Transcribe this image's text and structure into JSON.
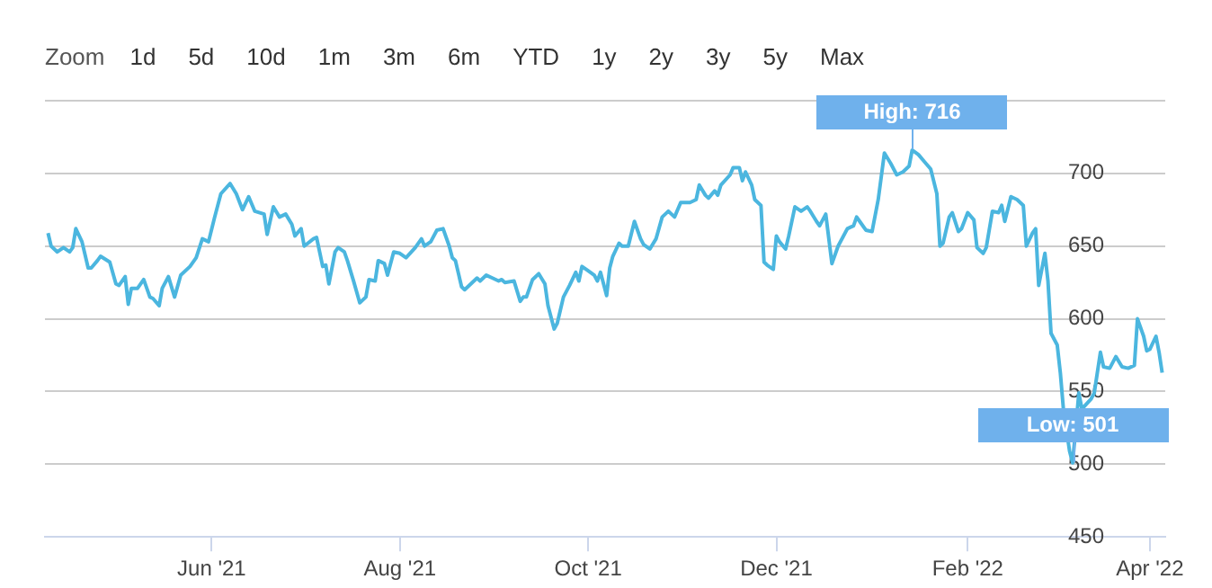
{
  "chart_data": {
    "type": "line",
    "x": [
      "2021-04-09",
      "2021-04-10",
      "2021-04-12",
      "2021-04-14",
      "2021-04-16",
      "2021-04-17",
      "2021-04-18",
      "2021-04-20",
      "2021-04-22",
      "2021-04-23",
      "2021-04-25",
      "2021-04-26",
      "2021-04-29",
      "2021-05-01",
      "2021-05-02",
      "2021-05-04",
      "2021-05-05",
      "2021-05-06",
      "2021-05-08",
      "2021-05-10",
      "2021-05-12",
      "2021-05-13",
      "2021-05-15",
      "2021-05-16",
      "2021-05-18",
      "2021-05-20",
      "2021-05-22",
      "2021-05-25",
      "2021-05-27",
      "2021-05-29",
      "2021-05-31",
      "2021-06-02",
      "2021-06-04",
      "2021-06-07",
      "2021-06-09",
      "2021-06-11",
      "2021-06-13",
      "2021-06-15",
      "2021-06-18",
      "2021-06-19",
      "2021-06-21",
      "2021-06-23",
      "2021-06-25",
      "2021-06-27",
      "2021-06-28",
      "2021-06-30",
      "2021-07-01",
      "2021-07-04",
      "2021-07-05",
      "2021-07-07",
      "2021-07-08",
      "2021-07-09",
      "2021-07-11",
      "2021-07-12",
      "2021-07-14",
      "2021-07-15",
      "2021-07-17",
      "2021-07-19",
      "2021-07-21",
      "2021-07-22",
      "2021-07-24",
      "2021-07-25",
      "2021-07-27",
      "2021-07-28",
      "2021-07-30",
      "2021-08-01",
      "2021-08-03",
      "2021-08-06",
      "2021-08-08",
      "2021-08-09",
      "2021-08-11",
      "2021-08-13",
      "2021-08-15",
      "2021-08-17",
      "2021-08-18",
      "2021-08-19",
      "2021-08-21",
      "2021-08-22",
      "2021-08-24",
      "2021-08-26",
      "2021-08-27",
      "2021-08-29",
      "2021-08-31",
      "2021-09-02",
      "2021-09-03",
      "2021-09-04",
      "2021-09-07",
      "2021-09-09",
      "2021-09-10",
      "2021-09-11",
      "2021-09-13",
      "2021-09-15",
      "2021-09-17",
      "2021-09-18",
      "2021-09-20",
      "2021-09-21",
      "2021-09-23",
      "2021-09-25",
      "2021-09-27",
      "2021-09-28",
      "2021-09-29",
      "2021-10-01",
      "2021-10-03",
      "2021-10-04",
      "2021-10-05",
      "2021-10-07",
      "2021-10-08",
      "2021-10-09",
      "2021-10-11",
      "2021-10-12",
      "2021-10-14",
      "2021-10-16",
      "2021-10-18",
      "2021-10-19",
      "2021-10-21",
      "2021-10-23",
      "2021-10-25",
      "2021-10-27",
      "2021-10-29",
      "2021-10-31",
      "2021-11-03",
      "2021-11-05",
      "2021-11-06",
      "2021-11-08",
      "2021-11-09",
      "2021-11-11",
      "2021-11-12",
      "2021-11-13",
      "2021-11-16",
      "2021-11-17",
      "2021-11-19",
      "2021-11-20",
      "2021-11-21",
      "2021-11-23",
      "2021-11-24",
      "2021-11-26",
      "2021-11-27",
      "2021-11-28",
      "2021-11-30",
      "2021-12-01",
      "2021-12-02",
      "2021-12-04",
      "2021-12-05",
      "2021-12-07",
      "2021-12-09",
      "2021-12-11",
      "2021-12-12",
      "2021-12-14",
      "2021-12-15",
      "2021-12-17",
      "2021-12-18",
      "2021-12-19",
      "2021-12-21",
      "2021-12-24",
      "2021-12-26",
      "2021-12-27",
      "2021-12-28",
      "2021-12-30",
      "2022-01-01",
      "2022-01-03",
      "2022-01-05",
      "2022-01-07",
      "2022-01-09",
      "2022-01-11",
      "2022-01-13",
      "2022-01-14",
      "2022-01-16",
      "2022-01-18",
      "2022-01-20",
      "2022-01-22",
      "2022-01-23",
      "2022-01-24",
      "2022-01-26",
      "2022-01-27",
      "2022-01-29",
      "2022-01-30",
      "2022-02-01",
      "2022-02-03",
      "2022-02-04",
      "2022-02-06",
      "2022-02-07",
      "2022-02-09",
      "2022-02-11",
      "2022-02-12",
      "2022-02-13",
      "2022-02-15",
      "2022-02-17",
      "2022-02-19",
      "2022-02-20",
      "2022-02-22",
      "2022-02-23",
      "2022-02-24",
      "2022-02-26",
      "2022-02-27",
      "2022-02-28",
      "2022-03-02",
      "2022-03-03",
      "2022-03-04",
      "2022-03-06",
      "2022-03-07",
      "2022-03-09",
      "2022-03-10",
      "2022-03-13",
      "2022-03-14",
      "2022-03-16",
      "2022-03-17",
      "2022-03-19",
      "2022-03-21",
      "2022-03-23",
      "2022-03-25",
      "2022-03-27",
      "2022-03-28",
      "2022-03-30",
      "2022-03-31",
      "2022-04-01",
      "2022-04-03",
      "2022-04-04",
      "2022-04-05"
    ],
    "series": [
      {
        "color": "#4bb6df",
        "values": [
          659,
          650,
          646,
          649,
          646,
          649,
          662,
          653,
          635,
          635,
          640,
          643,
          639,
          624,
          623,
          629,
          610,
          621,
          621,
          627,
          615,
          614,
          609,
          621,
          629,
          615,
          630,
          636,
          642,
          655,
          653,
          670,
          686,
          693,
          686,
          675,
          684,
          674,
          672,
          658,
          677,
          670,
          672,
          665,
          657,
          662,
          650,
          655,
          656,
          636,
          637,
          624,
          646,
          649,
          646,
          640,
          626,
          611,
          615,
          627,
          626,
          640,
          638,
          630,
          646,
          645,
          642,
          649,
          655,
          650,
          653,
          661,
          662,
          650,
          642,
          640,
          622,
          620,
          624,
          628,
          626,
          630,
          628,
          626,
          627,
          625,
          626,
          612,
          615,
          615,
          627,
          631,
          624,
          609,
          593,
          597,
          615,
          623,
          632,
          626,
          636,
          633,
          630,
          626,
          632,
          616,
          635,
          643,
          652,
          650,
          650,
          667,
          655,
          651,
          648,
          655,
          670,
          674,
          670,
          680,
          680,
          682,
          692,
          685,
          683,
          688,
          685,
          692,
          699,
          704,
          704,
          695,
          701,
          692,
          682,
          678,
          639,
          637,
          634,
          657,
          653,
          648,
          657,
          677,
          674,
          677,
          674,
          667,
          664,
          672,
          655,
          638,
          650,
          662,
          664,
          670,
          667,
          661,
          660,
          682,
          714,
          707,
          699,
          701,
          705,
          716,
          713,
          708,
          703,
          686,
          650,
          652,
          670,
          673,
          660,
          662,
          673,
          668,
          649,
          645,
          649,
          674,
          673,
          678,
          667,
          684,
          682,
          678,
          650,
          659,
          662,
          623,
          645,
          626,
          590,
          582,
          563,
          538,
          509,
          501,
          549,
          538,
          545,
          549,
          577,
          567,
          566,
          574,
          567,
          566,
          568,
          600,
          588,
          578,
          579,
          588,
          577,
          563
        ]
      }
    ],
    "xlim": [
      "2021-04-08",
      "2022-04-06"
    ],
    "xticks": [
      {
        "value": "2021-06-01",
        "label": "Jun '21"
      },
      {
        "value": "2021-08-01",
        "label": "Aug '21"
      },
      {
        "value": "2021-10-01",
        "label": "Oct '21"
      },
      {
        "value": "2021-12-01",
        "label": "Dec '21"
      },
      {
        "value": "2022-02-01",
        "label": "Feb '22"
      },
      {
        "value": "2022-04-01",
        "label": "Apr '22"
      }
    ],
    "ylim": [
      450,
      750
    ],
    "yticks": [
      450,
      500,
      550,
      600,
      650,
      700,
      {
        "value": 750,
        "label": null
      }
    ],
    "grid": "y",
    "legend": false,
    "annotations": [
      "Zoom",
      "1d",
      "5d",
      "10d",
      "1m",
      "3m",
      "6m",
      "YTD",
      "1y",
      "2y",
      "3y",
      "5y",
      "Max",
      {
        "text": "High: 716",
        "x": "2022-01-14",
        "y": 716
      },
      {
        "text": "Low: 501",
        "x": "2022-03-07",
        "y": 501
      }
    ]
  }
}
